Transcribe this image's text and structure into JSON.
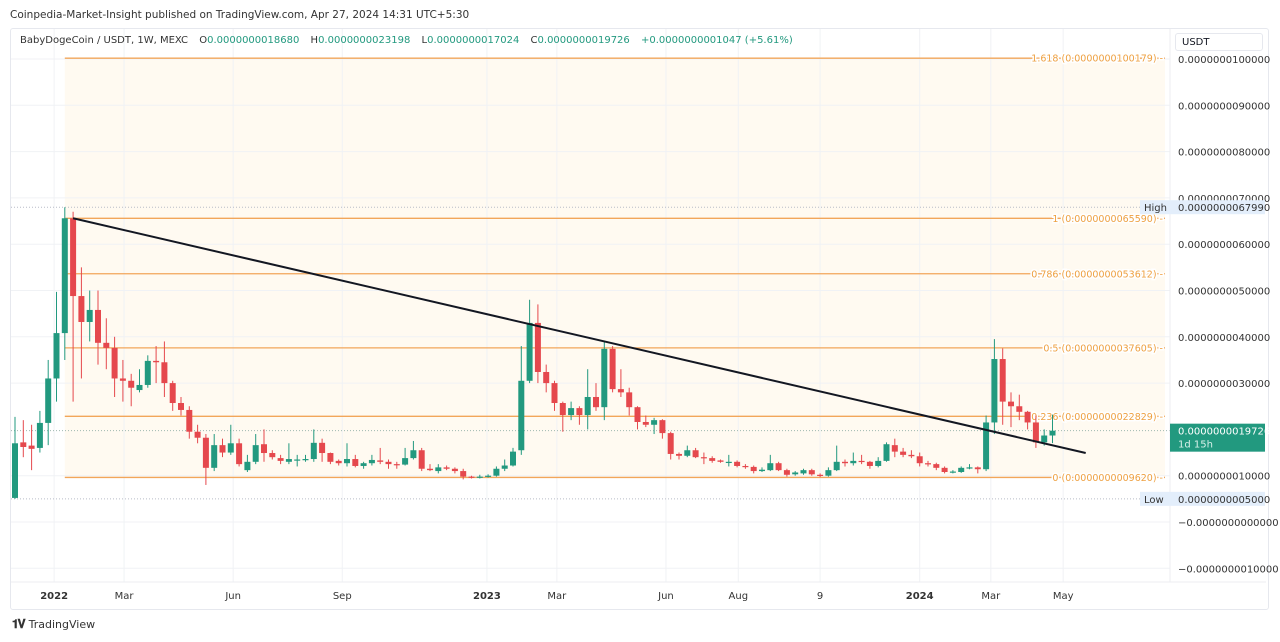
{
  "header": {
    "published": "Coinpedia-Market-Insight published on TradingView.com, Apr 27, 2024 14:31 UTC+5:30",
    "symbol": "BabyDogeCoin / USDT, 1W, MEXC",
    "o_label": "O",
    "o_value": "0.0000000018680",
    "h_label": "H",
    "h_value": "0.0000000023198",
    "l_label": "L",
    "l_value": "0.0000000017024",
    "c_label": "C",
    "c_value": "0.0000000019726",
    "change": "+0.0000000001047 (+5.61%)"
  },
  "currency_button": "USDT",
  "footer": {
    "brand": "TradingView"
  },
  "colors": {
    "up": "#22997f",
    "down": "#e5484d",
    "fib": "#f2a65a",
    "fib_text": "#eea040",
    "fib_fill": "#fffaf1",
    "trendline": "#131722"
  },
  "chart_data": {
    "type": "candlestick",
    "interval": "1W",
    "ylim": [
      -1.3e-09,
      1.05e-08
    ],
    "grid": true,
    "y_ticks": [
      {
        "value": 1e-08,
        "label": "0.0000000100000"
      },
      {
        "value": 9e-09,
        "label": "0.0000000090000"
      },
      {
        "value": 8e-09,
        "label": "0.0000000080000"
      },
      {
        "value": 7e-09,
        "label": "0.0000000070000"
      },
      {
        "value": 6e-09,
        "label": "0.0000000060000"
      },
      {
        "value": 5e-09,
        "label": "0.0000000050000"
      },
      {
        "value": 4e-09,
        "label": "0.0000000040000"
      },
      {
        "value": 3e-09,
        "label": "0.0000000030000"
      },
      {
        "value": 1e-09,
        "label": "0.0000000010000"
      },
      {
        "value": 0,
        "label": "−0.0000000000000"
      },
      {
        "value": -1e-09,
        "label": "−0.0000000010000"
      }
    ],
    "x_ticks": [
      {
        "date": "2022-01-01",
        "label": "2022",
        "bold": true
      },
      {
        "date": "2022-03-01",
        "label": "Mar"
      },
      {
        "date": "2022-06-01",
        "label": "Jun"
      },
      {
        "date": "2022-09-01",
        "label": "Sep"
      },
      {
        "date": "2023-01-01",
        "label": "2023",
        "bold": true
      },
      {
        "date": "2023-03-01",
        "label": "Mar"
      },
      {
        "date": "2023-06-01",
        "label": "Jun"
      },
      {
        "date": "2023-08-01",
        "label": "Aug"
      },
      {
        "date": "2023-10-09",
        "label": "9"
      },
      {
        "date": "2024-01-01",
        "label": "2024",
        "bold": true
      },
      {
        "date": "2024-03-01",
        "label": "Mar"
      },
      {
        "date": "2024-05-01",
        "label": "May"
      }
    ],
    "high_marker": {
      "label": "High",
      "value": 6.799e-09,
      "text": "0.0000000067990"
    },
    "low_marker": {
      "label": "Low",
      "value": 5e-10,
      "text": "0.0000000005000"
    },
    "last_price": {
      "value": 1.9726e-09,
      "text": "0.0000000019726",
      "countdown": "1d 15h"
    },
    "fib_levels": [
      {
        "level": 1.618,
        "value": 1.00179e-08,
        "label": "1.618 (0.0000000100179)"
      },
      {
        "level": 1,
        "value": 6.559e-09,
        "label": "1 (0.0000000065590)"
      },
      {
        "level": 0.786,
        "value": 5.3612e-09,
        "label": "0.786 (0.0000000053612)"
      },
      {
        "level": 0.5,
        "value": 3.7605e-09,
        "label": "0.5 (0.0000000037605)"
      },
      {
        "level": 0.236,
        "value": 2.2829e-09,
        "label": "0.236 (0.0000000022829)"
      },
      {
        "level": 0,
        "value": 9.62e-10,
        "label": "0 (0.0000000009620)"
      }
    ],
    "fib_range": {
      "start": "2022-01-10",
      "end": "2024-07-22"
    },
    "trendline": [
      [
        "2022-01-17",
        6.56e-09
      ],
      [
        "2024-05-20",
        1.49e-09
      ]
    ],
    "candle_fields": [
      "date",
      "open",
      "high",
      "low",
      "close"
    ],
    "candles": [
      [
        "2021-11-29",
        5.2e-10,
        2.27e-09,
        5e-10,
        1.7e-09
      ],
      [
        "2021-12-06",
        1.72e-09,
        2.2e-09,
        1.4e-09,
        1.62e-09
      ],
      [
        "2021-12-13",
        1.65e-09,
        2.1e-09,
        1.12e-09,
        1.58e-09
      ],
      [
        "2021-12-20",
        1.6e-09,
        2.4e-09,
        1.5e-09,
        2.14e-09
      ],
      [
        "2021-12-27",
        2.14e-09,
        3.5e-09,
        1.66e-09,
        3.1e-09
      ],
      [
        "2022-01-03",
        3.1e-09,
        4.97e-09,
        2.6e-09,
        4.08e-09
      ],
      [
        "2022-01-10",
        4.08e-09,
        6.799e-09,
        3.5e-09,
        6.56e-09
      ],
      [
        "2022-01-17",
        6.56e-09,
        6.7e-09,
        2.6e-09,
        4.88e-09
      ],
      [
        "2022-01-24",
        4.88e-09,
        5.5e-09,
        3.1e-09,
        4.32e-09
      ],
      [
        "2022-01-31",
        4.32e-09,
        5e-09,
        3.9e-09,
        4.58e-09
      ],
      [
        "2022-02-07",
        4.58e-09,
        5e-09,
        3.4e-09,
        3.87e-09
      ],
      [
        "2022-02-14",
        3.87e-09,
        4.4e-09,
        3.3e-09,
        3.76e-09
      ],
      [
        "2022-02-21",
        3.76e-09,
        4e-09,
        2.7e-09,
        3.1e-09
      ],
      [
        "2022-02-28",
        3.1e-09,
        3.5e-09,
        2.6e-09,
        3.05e-09
      ],
      [
        "2022-03-07",
        3.05e-09,
        3.2e-09,
        2.5e-09,
        2.9e-09
      ],
      [
        "2022-03-14",
        2.85e-09,
        3.3e-09,
        2.8e-09,
        2.96e-09
      ],
      [
        "2022-03-21",
        2.96e-09,
        3.6e-09,
        2.9e-09,
        3.48e-09
      ],
      [
        "2022-03-28",
        3.48e-09,
        3.8e-09,
        3e-09,
        3.45e-09
      ],
      [
        "2022-04-04",
        3.45e-09,
        3.9e-09,
        2.7e-09,
        3e-09
      ],
      [
        "2022-04-11",
        3e-09,
        3.05e-09,
        2.4e-09,
        2.57e-09
      ],
      [
        "2022-04-18",
        2.57e-09,
        2.7e-09,
        2.3e-09,
        2.42e-09
      ],
      [
        "2022-04-25",
        2.42e-09,
        2.5e-09,
        1.8e-09,
        1.95e-09
      ],
      [
        "2022-05-02",
        1.95e-09,
        2.1e-09,
        1.7e-09,
        1.82e-09
      ],
      [
        "2022-05-09",
        1.82e-09,
        1.9e-09,
        8e-10,
        1.17e-09
      ],
      [
        "2022-05-16",
        1.17e-09,
        1.9e-09,
        1.1e-09,
        1.66e-09
      ],
      [
        "2022-05-23",
        1.66e-09,
        1.8e-09,
        1.4e-09,
        1.5e-09
      ],
      [
        "2022-05-30",
        1.5e-09,
        2.1e-09,
        1.45e-09,
        1.7e-09
      ],
      [
        "2022-06-06",
        1.7e-09,
        1.8e-09,
        1.2e-09,
        1.25e-09
      ],
      [
        "2022-06-13",
        1.12e-09,
        1.45e-09,
        1.08e-09,
        1.3e-09
      ],
      [
        "2022-06-20",
        1.3e-09,
        1.9e-09,
        1.25e-09,
        1.66e-09
      ],
      [
        "2022-06-27",
        1.68e-09,
        2e-09,
        1.3e-09,
        1.49e-09
      ],
      [
        "2022-07-04",
        1.49e-09,
        1.55e-09,
        1.35e-09,
        1.4e-09
      ],
      [
        "2022-07-11",
        1.38e-09,
        1.45e-09,
        1.25e-09,
        1.32e-09
      ],
      [
        "2022-07-18",
        1.3e-09,
        1.7e-09,
        1.25e-09,
        1.36e-09
      ],
      [
        "2022-07-25",
        1.34e-09,
        1.45e-09,
        1.2e-09,
        1.35e-09
      ],
      [
        "2022-08-01",
        1.35e-09,
        1.45e-09,
        1.3e-09,
        1.36e-09
      ],
      [
        "2022-08-08",
        1.36e-09,
        2e-09,
        1.3e-09,
        1.71e-09
      ],
      [
        "2022-08-15",
        1.71e-09,
        1.8e-09,
        1.3e-09,
        1.49e-09
      ],
      [
        "2022-08-22",
        1.49e-09,
        1.5e-09,
        1.25e-09,
        1.3e-09
      ],
      [
        "2022-08-29",
        1.32e-09,
        1.35e-09,
        1.22e-09,
        1.27e-09
      ],
      [
        "2022-09-05",
        1.27e-09,
        1.7e-09,
        1.2e-09,
        1.36e-09
      ],
      [
        "2022-09-12",
        1.36e-09,
        1.45e-09,
        1.18e-09,
        1.21e-09
      ],
      [
        "2022-09-19",
        1.21e-09,
        1.3e-09,
        1.15e-09,
        1.27e-09
      ],
      [
        "2022-09-26",
        1.27e-09,
        1.45e-09,
        1.22e-09,
        1.34e-09
      ],
      [
        "2022-10-03",
        1.33e-09,
        1.6e-09,
        1.25e-09,
        1.3e-09
      ],
      [
        "2022-10-10",
        1.3e-09,
        1.35e-09,
        1.15e-09,
        1.25e-09
      ],
      [
        "2022-10-17",
        1.25e-09,
        1.3e-09,
        1.15e-09,
        1.24e-09
      ],
      [
        "2022-10-24",
        1.24e-09,
        1.6e-09,
        1.22e-09,
        1.38e-09
      ],
      [
        "2022-10-31",
        1.38e-09,
        1.75e-09,
        1.35e-09,
        1.55e-09
      ],
      [
        "2022-11-07",
        1.55e-09,
        1.6e-09,
        1.1e-09,
        1.15e-09
      ],
      [
        "2022-11-14",
        1.15e-09,
        1.25e-09,
        1.1e-09,
        1.12e-09
      ],
      [
        "2022-11-21",
        1.1e-09,
        1.25e-09,
        1.05e-09,
        1.18e-09
      ],
      [
        "2022-11-28",
        1.18e-09,
        1.22e-09,
        1.12e-09,
        1.15e-09
      ],
      [
        "2022-12-05",
        1.15e-09,
        1.18e-09,
        1.05e-09,
        1.1e-09
      ],
      [
        "2022-12-12",
        1.1e-09,
        1.15e-09,
        9.2e-10,
        9.8e-10
      ],
      [
        "2022-12-19",
        9.8e-10,
        1e-09,
        9.4e-10,
        9.6e-10
      ],
      [
        "2022-12-26",
        9.6e-10,
        1.02e-09,
        9.4e-10,
        9.8e-10
      ],
      [
        "2023-01-02",
        9.8e-10,
        1.03e-09,
        9.6e-10,
        1e-09
      ],
      [
        "2023-01-09",
        1e-09,
        1.2e-09,
        9.8e-10,
        1.15e-09
      ],
      [
        "2023-01-16",
        1.15e-09,
        1.35e-09,
        1.1e-09,
        1.22e-09
      ],
      [
        "2023-01-23",
        1.22e-09,
        1.6e-09,
        1.2e-09,
        1.52e-09
      ],
      [
        "2023-01-30",
        1.55e-09,
        3.8e-09,
        1.45e-09,
        3.05e-09
      ],
      [
        "2023-02-06",
        3.05e-09,
        4.8e-09,
        3e-09,
        4.3e-09
      ],
      [
        "2023-02-13",
        4.3e-09,
        4.7e-09,
        3e-09,
        3.24e-09
      ],
      [
        "2023-02-20",
        3.24e-09,
        3.4e-09,
        2.8e-09,
        3e-09
      ],
      [
        "2023-02-27",
        3e-09,
        3.05e-09,
        2.4e-09,
        2.57e-09
      ],
      [
        "2023-03-06",
        2.57e-09,
        2.6e-09,
        1.95e-09,
        2.31e-09
      ],
      [
        "2023-03-13",
        2.31e-09,
        2.6e-09,
        2.2e-09,
        2.46e-09
      ],
      [
        "2023-03-20",
        2.46e-09,
        2.5e-09,
        2.1e-09,
        2.31e-09
      ],
      [
        "2023-03-27",
        2.31e-09,
        3.3e-09,
        2e-09,
        2.7e-09
      ],
      [
        "2023-04-03",
        2.7e-09,
        3e-09,
        2.4e-09,
        2.48e-09
      ],
      [
        "2023-04-10",
        2.48e-09,
        3.9e-09,
        2.2e-09,
        3.74e-09
      ],
      [
        "2023-04-17",
        3.74e-09,
        3.8e-09,
        2.8e-09,
        2.87e-09
      ],
      [
        "2023-04-24",
        2.87e-09,
        3.3e-09,
        2.7e-09,
        2.8e-09
      ],
      [
        "2023-05-01",
        2.8e-09,
        2.9e-09,
        2.3e-09,
        2.48e-09
      ],
      [
        "2023-05-08",
        2.48e-09,
        2.5e-09,
        2e-09,
        2.16e-09
      ],
      [
        "2023-05-15",
        2.16e-09,
        2.3e-09,
        2.05e-09,
        2.1e-09
      ],
      [
        "2023-05-22",
        2.1e-09,
        2.25e-09,
        1.9e-09,
        2.2e-09
      ],
      [
        "2023-05-29",
        2.2e-09,
        2.22e-09,
        1.8e-09,
        1.92e-09
      ],
      [
        "2023-06-05",
        1.92e-09,
        1.95e-09,
        1.35e-09,
        1.47e-09
      ],
      [
        "2023-06-12",
        1.47e-09,
        1.5e-09,
        1.35e-09,
        1.43e-09
      ],
      [
        "2023-06-19",
        1.43e-09,
        1.65e-09,
        1.4e-09,
        1.55e-09
      ],
      [
        "2023-06-26",
        1.55e-09,
        1.6e-09,
        1.38e-09,
        1.4e-09
      ],
      [
        "2023-07-03",
        1.4e-09,
        1.5e-09,
        1.25e-09,
        1.38e-09
      ],
      [
        "2023-07-10",
        1.38e-09,
        1.42e-09,
        1.28e-09,
        1.32e-09
      ],
      [
        "2023-07-17",
        1.33e-09,
        1.35e-09,
        1.28e-09,
        1.3e-09
      ],
      [
        "2023-07-24",
        1.28e-09,
        1.45e-09,
        1.2e-09,
        1.3e-09
      ],
      [
        "2023-07-31",
        1.3e-09,
        1.33e-09,
        1.18e-09,
        1.21e-09
      ],
      [
        "2023-08-07",
        1.21e-09,
        1.25e-09,
        1.15e-09,
        1.19e-09
      ],
      [
        "2023-08-14",
        1.19e-09,
        1.22e-09,
        1.05e-09,
        1.1e-09
      ],
      [
        "2023-08-21",
        1.1e-09,
        1.18e-09,
        1.08e-09,
        1.13e-09
      ],
      [
        "2023-08-28",
        1.12e-09,
        1.45e-09,
        1.1e-09,
        1.27e-09
      ],
      [
        "2023-09-04",
        1.27e-09,
        1.3e-09,
        1.1e-09,
        1.12e-09
      ],
      [
        "2023-09-11",
        1.12e-09,
        1.15e-09,
        9.8e-10,
        1.02e-09
      ],
      [
        "2023-09-18",
        1.03e-09,
        1.1e-09,
        1e-09,
        1.07e-09
      ],
      [
        "2023-09-25",
        1.05e-09,
        1.15e-09,
        1.02e-09,
        1.12e-09
      ],
      [
        "2023-10-02",
        1.12e-09,
        1.15e-09,
        1e-09,
        1.03e-09
      ],
      [
        "2023-10-09",
        1.02e-09,
        1.05e-09,
        9.7e-10,
        1e-09
      ],
      [
        "2023-10-16",
        1e-09,
        1.18e-09,
        9.8e-10,
        1.12e-09
      ],
      [
        "2023-10-23",
        1.12e-09,
        1.65e-09,
        1.1e-09,
        1.3e-09
      ],
      [
        "2023-10-30",
        1.3e-09,
        1.35e-09,
        1.2e-09,
        1.27e-09
      ],
      [
        "2023-11-06",
        1.27e-09,
        1.5e-09,
        1.22e-09,
        1.32e-09
      ],
      [
        "2023-11-13",
        1.32e-09,
        1.45e-09,
        1.25e-09,
        1.3e-09
      ],
      [
        "2023-11-20",
        1.3e-09,
        1.32e-09,
        1.15e-09,
        1.21e-09
      ],
      [
        "2023-11-27",
        1.21e-09,
        1.4e-09,
        1.18e-09,
        1.32e-09
      ],
      [
        "2023-12-04",
        1.32e-09,
        1.72e-09,
        1.3e-09,
        1.68e-09
      ],
      [
        "2023-12-11",
        1.66e-09,
        1.8e-09,
        1.4e-09,
        1.52e-09
      ],
      [
        "2023-12-18",
        1.52e-09,
        1.6e-09,
        1.4e-09,
        1.45e-09
      ],
      [
        "2023-12-25",
        1.45e-09,
        1.55e-09,
        1.38e-09,
        1.42e-09
      ],
      [
        "2024-01-01",
        1.42e-09,
        1.5e-09,
        1.2e-09,
        1.27e-09
      ],
      [
        "2024-01-08",
        1.27e-09,
        1.32e-09,
        1.2e-09,
        1.25e-09
      ],
      [
        "2024-01-15",
        1.25e-09,
        1.28e-09,
        1.12e-09,
        1.17e-09
      ],
      [
        "2024-01-22",
        1.17e-09,
        1.2e-09,
        1.05e-09,
        1.08e-09
      ],
      [
        "2024-01-29",
        1.08e-09,
        1.12e-09,
        1.05e-09,
        1.09e-09
      ],
      [
        "2024-02-05",
        1.08e-09,
        1.2e-09,
        1.06e-09,
        1.17e-09
      ],
      [
        "2024-02-12",
        1.17e-09,
        1.25e-09,
        1.14e-09,
        1.18e-09
      ],
      [
        "2024-02-19",
        1.18e-09,
        1.2e-09,
        1.05e-09,
        1.14e-09
      ],
      [
        "2024-02-26",
        1.14e-09,
        2.3e-09,
        1.1e-09,
        2.15e-09
      ],
      [
        "2024-03-04",
        2.15e-09,
        3.95e-09,
        1.9e-09,
        3.52e-09
      ],
      [
        "2024-03-11",
        3.52e-09,
        3.75e-09,
        2.1e-09,
        2.6e-09
      ],
      [
        "2024-03-18",
        2.6e-09,
        2.8e-09,
        2.05e-09,
        2.5e-09
      ],
      [
        "2024-03-25",
        2.5e-09,
        2.75e-09,
        2.2e-09,
        2.38e-09
      ],
      [
        "2024-04-01",
        2.38e-09,
        2.4e-09,
        2e-09,
        2.15e-09
      ],
      [
        "2024-04-08",
        2.15e-09,
        2.3e-09,
        1.6e-09,
        1.72e-09
      ],
      [
        "2024-04-15",
        1.72e-09,
        2e-09,
        1.65e-09,
        1.868e-09
      ],
      [
        "2024-04-22",
        1.868e-09,
        2.3198e-09,
        1.7024e-09,
        1.9726e-09
      ]
    ]
  }
}
